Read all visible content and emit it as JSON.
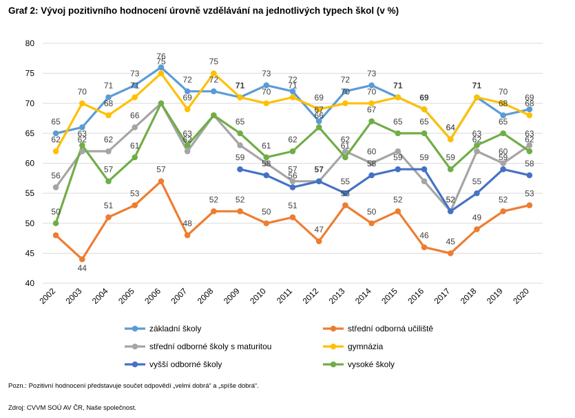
{
  "title": "Graf 2: Vývoj pozitivního hodnocení úrovně vzdělávání na jednotlivých typech škol (v %)",
  "note": "Pozn.: Pozitivní hodnocení představuje součet odpovědí „velmi dobrá“ a „spíše dobrá“.",
  "source": "Zdroj: CVVM SOÚ AV ČR, Naše společnost.",
  "chart_data": {
    "type": "line",
    "categories": [
      "2002",
      "2003",
      "2004",
      "2005",
      "2006",
      "2007",
      "2008",
      "2009",
      "2010",
      "2011",
      "2012",
      "2013",
      "2014",
      "2015",
      "2016",
      "2017",
      "2018",
      "2019",
      "2020"
    ],
    "ylim": [
      40,
      80
    ],
    "yticks": [
      "40",
      "45",
      "50",
      "55",
      "60",
      "65",
      "70",
      "75",
      "80"
    ],
    "grid": true,
    "legend_position": "bottom",
    "series": [
      {
        "name": "základní školy",
        "color": "#5b9bd5",
        "values": [
          65,
          66,
          71,
          73,
          76,
          72,
          72,
          71,
          73,
          72,
          67,
          72,
          73,
          71,
          69,
          64,
          71,
          68,
          69
        ]
      },
      {
        "name": "střední odborná učiliště",
        "color": "#ed7d31",
        "values": [
          48,
          44,
          51,
          53,
          57,
          48,
          52,
          52,
          50,
          51,
          47,
          53,
          50,
          52,
          46,
          45,
          49,
          52,
          53
        ]
      },
      {
        "name": "střední odborné školy s maturitou",
        "color": "#a5a5a5",
        "values": [
          56,
          62,
          62,
          66,
          70,
          62,
          68,
          63,
          60,
          57,
          57,
          62,
          60,
          62,
          57,
          52,
          62,
          60,
          63
        ]
      },
      {
        "name": "gymnázia",
        "color": "#ffc000",
        "values": [
          62,
          70,
          68,
          71,
          75,
          69,
          75,
          71,
          70,
          71,
          69,
          70,
          70,
          71,
          69,
          64,
          71,
          70,
          68
        ]
      },
      {
        "name": "vyšší odborné školy",
        "color": "#4472c4",
        "values": [
          null,
          null,
          null,
          null,
          null,
          null,
          null,
          59,
          58,
          56,
          57,
          55,
          58,
          59,
          59,
          52,
          55,
          59,
          58
        ]
      },
      {
        "name": "vysoké školy",
        "color": "#70ad47",
        "values": [
          50,
          63,
          57,
          61,
          70,
          63,
          68,
          65,
          61,
          62,
          66,
          61,
          67,
          65,
          65,
          59,
          63,
          65,
          62
        ]
      }
    ],
    "labels": {
      "0": {
        "v": [
          65,
          66,
          71,
          73,
          76,
          72,
          72,
          71,
          73,
          72,
          67,
          72,
          73,
          71,
          69,
          64,
          71,
          68,
          69
        ],
        "o": [
          -13,
          0,
          -13,
          -13,
          -12,
          -13,
          0,
          0,
          -13,
          -13,
          0,
          -13,
          -13,
          0,
          0,
          0,
          0,
          0,
          -13
        ],
        "b": [
          0,
          0,
          0,
          0,
          0,
          0,
          0,
          1,
          0,
          0,
          0,
          0,
          0,
          1,
          1,
          0,
          1,
          0,
          0
        ],
        "s": [
          1,
          0,
          1,
          1,
          1,
          1,
          1,
          0,
          1,
          1,
          1,
          1,
          1,
          0,
          0,
          1,
          0,
          1,
          1
        ]
      },
      "1": {
        "v": [
          48,
          44,
          51,
          53,
          57,
          48,
          52,
          52,
          50,
          51,
          47,
          53,
          50,
          52,
          46,
          45,
          49,
          52,
          53
        ],
        "o": [
          -13,
          17,
          -13,
          -13,
          -13,
          -13,
          -13,
          -13,
          -13,
          -13,
          -13,
          -13,
          -13,
          -13,
          -13,
          -13,
          -13,
          0,
          -13
        ],
        "s": [
          0,
          1,
          1,
          1,
          1,
          1,
          1,
          1,
          1,
          1,
          1,
          1,
          1,
          1,
          1,
          1,
          1,
          1,
          1
        ]
      },
      "2": {
        "v": [
          56,
          62,
          62,
          66,
          70,
          62,
          68,
          63,
          60,
          57,
          57,
          62,
          60,
          62,
          57,
          52,
          62,
          60,
          63
        ],
        "o": [
          -13,
          -13,
          -13,
          -13,
          -13,
          -13,
          -13,
          -13,
          -13,
          -13,
          -13,
          -13,
          -13,
          -13,
          -13,
          -13,
          -13,
          -13,
          -13
        ],
        "b": [
          0,
          0,
          0,
          0,
          1,
          0,
          1,
          0,
          0,
          0,
          1,
          0,
          0,
          0,
          0,
          0,
          0,
          0,
          0
        ],
        "s": [
          1,
          1,
          1,
          1,
          0,
          1,
          0,
          0,
          0,
          1,
          0,
          1,
          1,
          0,
          0,
          1,
          1,
          1,
          1
        ]
      },
      "3": {
        "v": [
          62,
          70,
          68,
          71,
          75,
          69,
          75,
          71,
          70,
          71,
          69,
          70,
          70,
          71,
          69,
          64,
          71,
          70,
          68
        ],
        "o": [
          -13,
          -13,
          -13,
          -13,
          -13,
          -13,
          -13,
          -13,
          -13,
          -13,
          -13,
          -13,
          -13,
          -13,
          -13,
          -13,
          -13,
          -13,
          -13
        ],
        "b": [
          0,
          0,
          0,
          0,
          0,
          0,
          0,
          1,
          0,
          0,
          0,
          0,
          0,
          1,
          1,
          0,
          1,
          0,
          0
        ],
        "s": [
          1,
          1,
          1,
          1,
          1,
          1,
          1,
          1,
          1,
          1,
          1,
          1,
          1,
          1,
          1,
          1,
          1,
          1,
          1
        ]
      },
      "4": {
        "v": [
          null,
          null,
          null,
          null,
          null,
          null,
          null,
          59,
          58,
          56,
          57,
          55,
          58,
          59,
          59,
          52,
          55,
          59,
          58
        ],
        "o": [
          0,
          0,
          0,
          0,
          0,
          0,
          0,
          -13,
          -13,
          -13,
          -13,
          -13,
          -13,
          -13,
          -13,
          -13,
          -13,
          -13,
          -13
        ],
        "b": [
          0,
          0,
          0,
          0,
          0,
          0,
          0,
          0,
          0,
          0,
          1,
          0,
          0,
          0,
          0,
          0,
          0,
          0,
          0
        ],
        "s": [
          0,
          0,
          0,
          0,
          0,
          0,
          0,
          1,
          1,
          1,
          1,
          1,
          1,
          1,
          1,
          1,
          1,
          1,
          1
        ]
      },
      "5": {
        "v": [
          50,
          63,
          57,
          61,
          70,
          63,
          68,
          65,
          61,
          62,
          66,
          61,
          67,
          65,
          65,
          59,
          63,
          65,
          62
        ],
        "o": [
          -13,
          -13,
          -13,
          -13,
          -13,
          -13,
          -13,
          -13,
          -13,
          -13,
          -13,
          -13,
          -13,
          -13,
          -13,
          -13,
          -13,
          -13,
          -13
        ],
        "b": [
          0,
          0,
          0,
          0,
          1,
          0,
          1,
          0,
          0,
          0,
          0,
          0,
          0,
          0,
          0,
          0,
          0,
          0,
          0
        ],
        "s": [
          1,
          1,
          1,
          1,
          0,
          1,
          0,
          1,
          1,
          1,
          1,
          1,
          1,
          1,
          1,
          1,
          1,
          1,
          1
        ]
      }
    }
  }
}
